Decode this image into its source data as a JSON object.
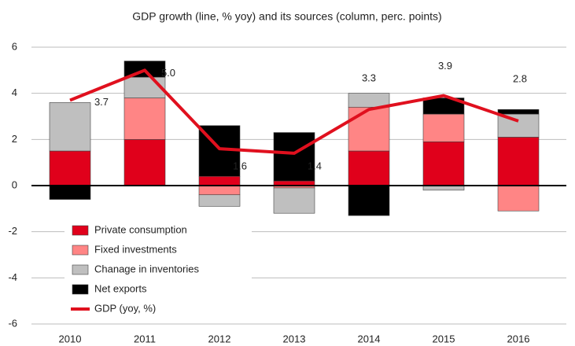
{
  "chart_data": {
    "type": "bar",
    "title": "GDP growth (line, % yoy) and its sources (column, perc. points)",
    "categories": [
      "2010",
      "2011",
      "2012",
      "2013",
      "2014",
      "2015",
      "2016"
    ],
    "series": [
      {
        "name": "Private consumption",
        "color": "#e0001b",
        "type": "bar",
        "values": [
          1.5,
          2.0,
          0.4,
          0.2,
          1.5,
          1.9,
          2.1
        ]
      },
      {
        "name": "Fixed investments",
        "color": "#ff8585",
        "type": "bar",
        "values": [
          0,
          1.8,
          -0.4,
          -0.1,
          1.9,
          1.2,
          -1.1
        ]
      },
      {
        "name": "Chanage in inventories",
        "color": "#bfbfbf",
        "type": "bar",
        "values": [
          2.1,
          0.9,
          -0.5,
          -1.1,
          0.6,
          -0.2,
          1.0
        ]
      },
      {
        "name": "Net exports",
        "color": "#000000",
        "type": "bar",
        "values": [
          -0.6,
          0.7,
          2.2,
          2.1,
          -1.3,
          0.7,
          0.2
        ]
      },
      {
        "name": "GDP (yoy, %)",
        "color": "#e0101e",
        "type": "line",
        "values": [
          3.7,
          5.0,
          1.6,
          1.4,
          3.3,
          3.9,
          2.8
        ],
        "value_labels": [
          "3.7",
          "5.0",
          "1.6",
          "1.4",
          "3.3",
          "3.9",
          "2.8"
        ]
      }
    ],
    "ylim": [
      -6,
      6
    ],
    "yticks": [
      -6,
      -4,
      -2,
      0,
      2,
      4,
      6
    ],
    "grid": true,
    "legend": "lower left"
  }
}
